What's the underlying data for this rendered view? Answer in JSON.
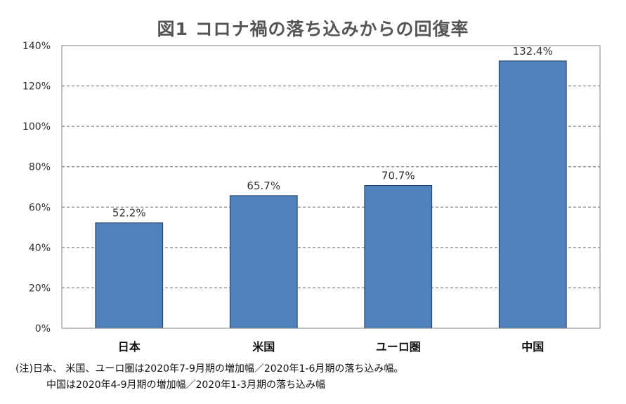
{
  "chart_data": {
    "type": "bar",
    "title": "図1 コロナ禍の落ち込みからの回復率",
    "categories": [
      "日本",
      "米国",
      "ユーロ圏",
      "中国"
    ],
    "values": [
      52.2,
      65.7,
      70.7,
      132.4
    ],
    "data_labels": [
      "52.2%",
      "65.7%",
      "70.7%",
      "132.4%"
    ],
    "ylim": [
      0,
      140
    ],
    "yticks": [
      0,
      20,
      40,
      60,
      80,
      100,
      120,
      140
    ],
    "ytick_labels": [
      "0%",
      "20%",
      "40%",
      "60%",
      "80%",
      "100%",
      "120%",
      "140%"
    ],
    "xlabel": "",
    "ylabel": "",
    "grid": "horizontal dashed",
    "bar_color": "#4f81bd",
    "bar_edge_color": "#1f3a5f"
  },
  "notes": [
    "(注)日本、 米国、ユーロ圏は2020年7-9月期の増加幅／2020年1-6月期の落ち込み幅。",
    "中国は2020年4-9月期の増加幅／2020年1-3月期の落ち込み幅"
  ]
}
